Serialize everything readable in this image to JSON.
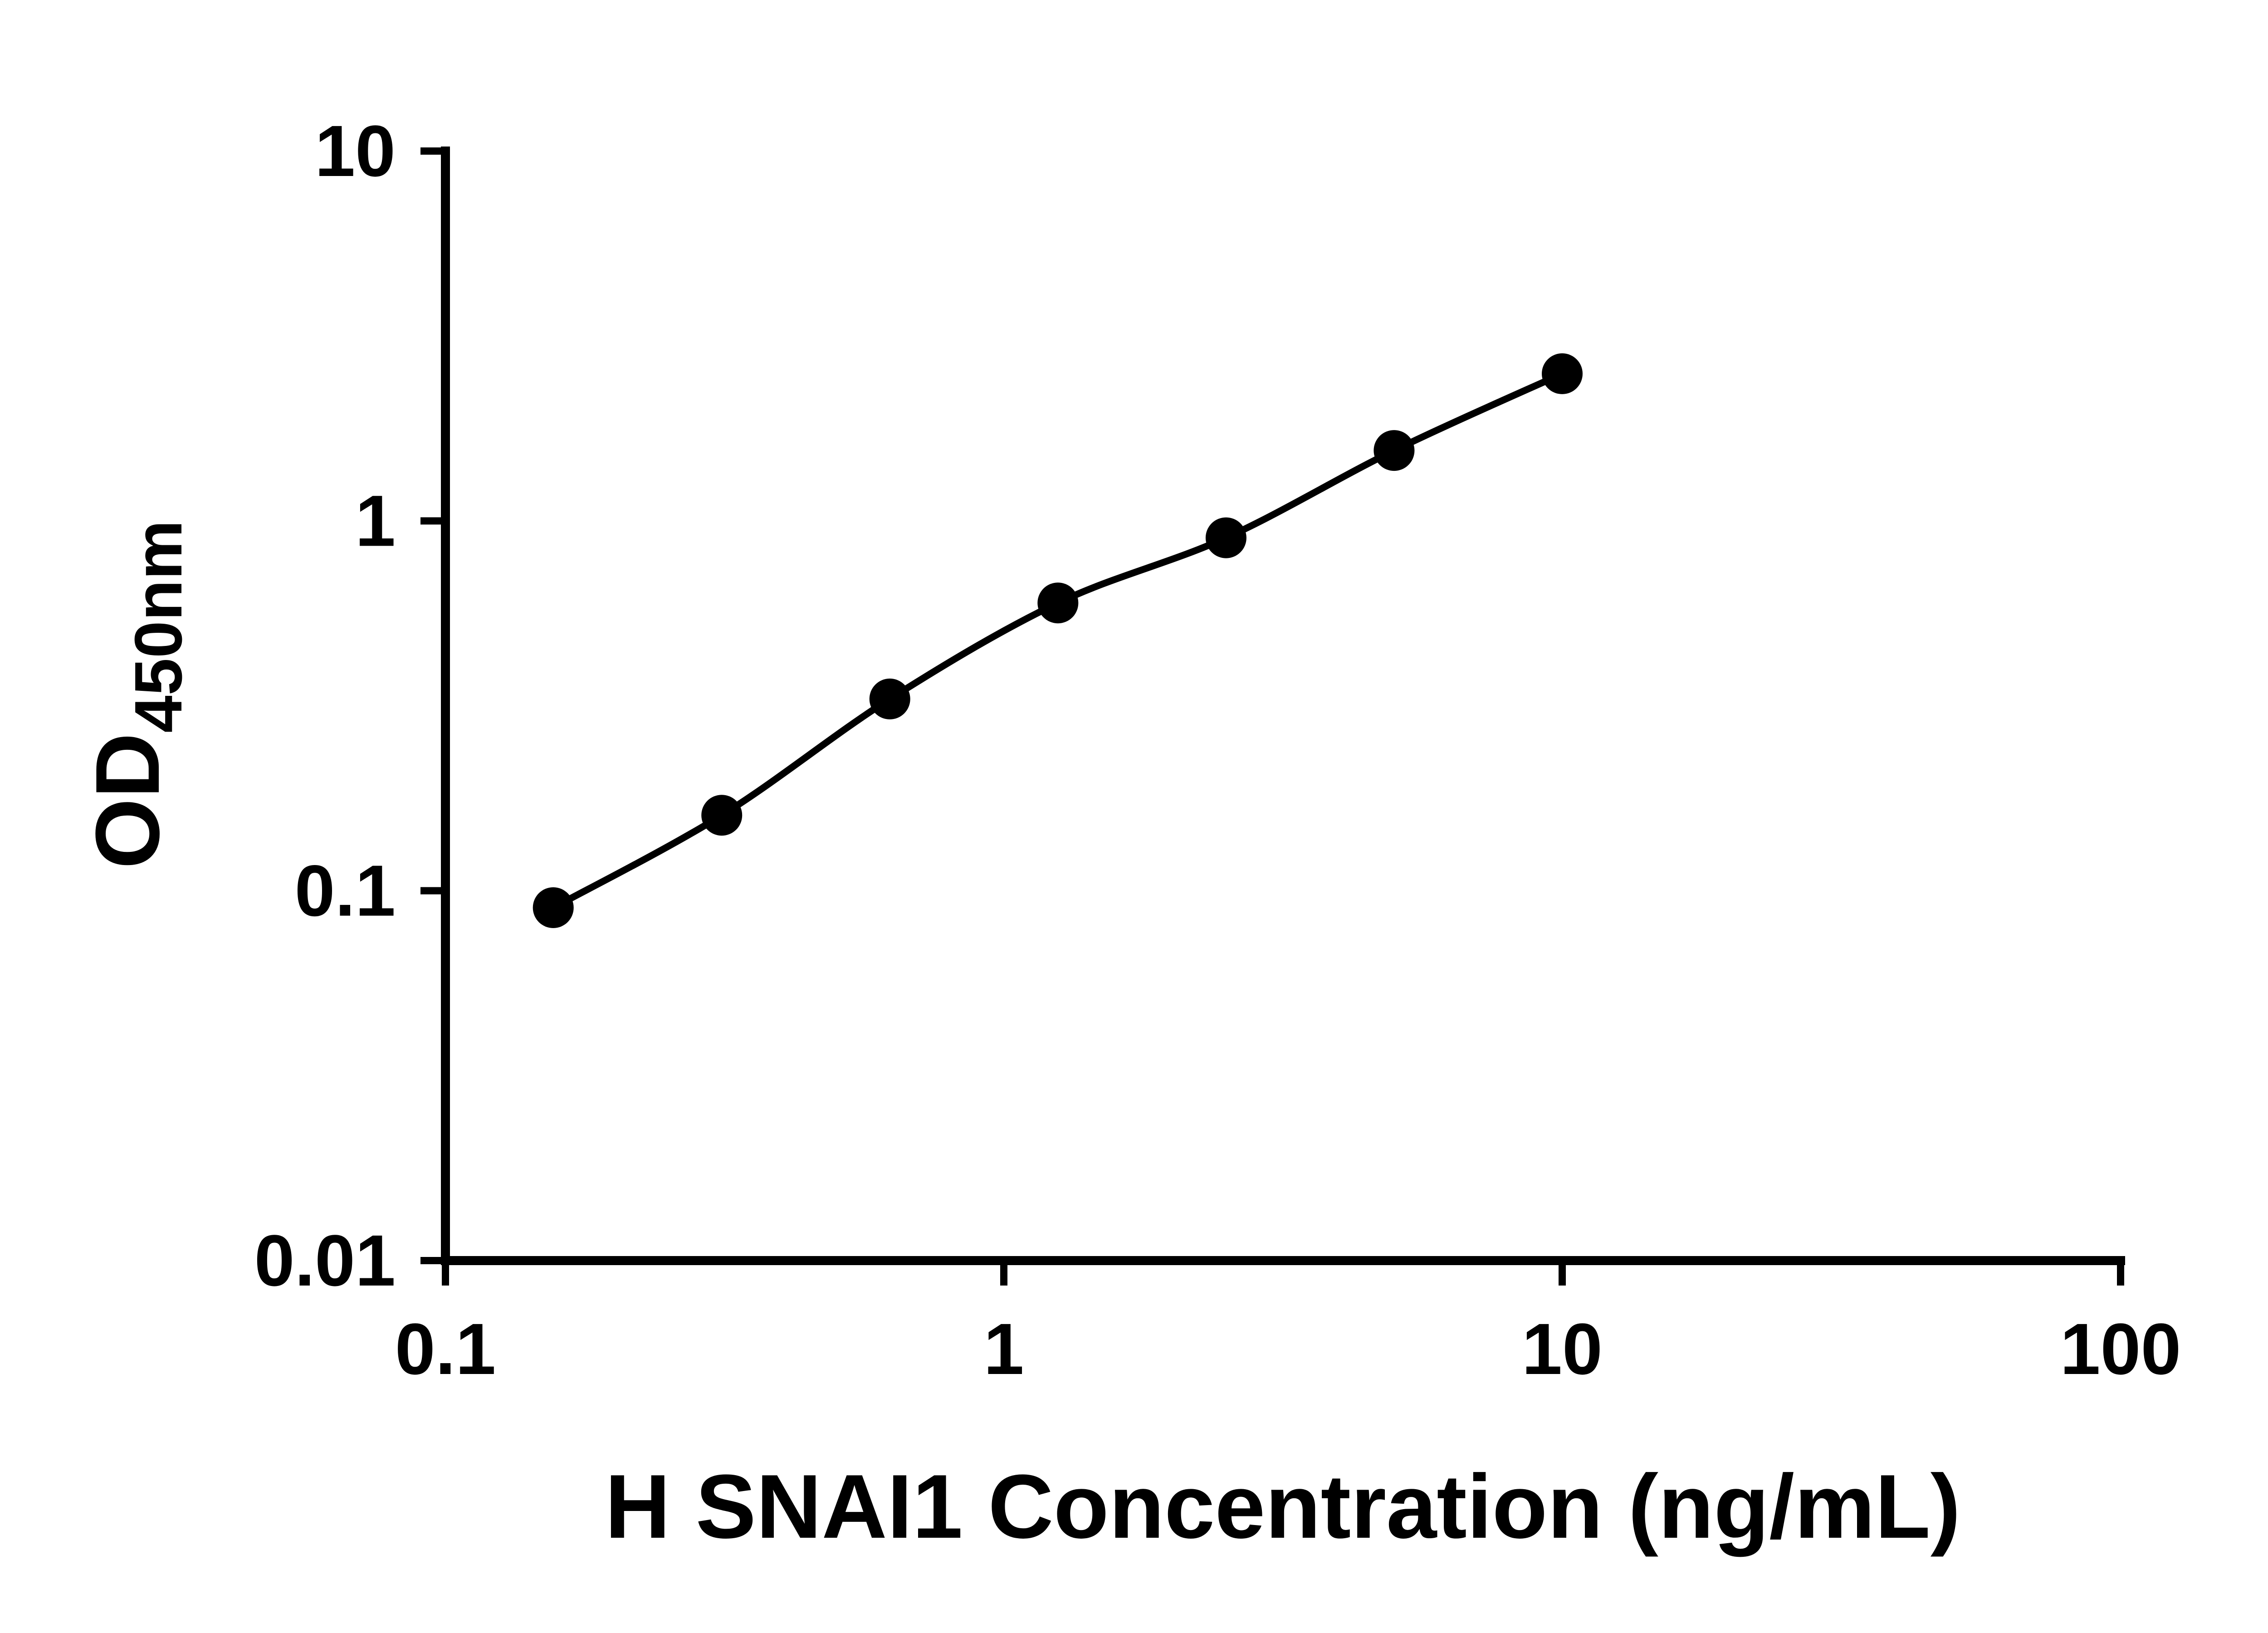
{
  "chart_data": {
    "type": "scatter",
    "title": "",
    "xlabel": "H SNAI1 Concentration (ng/mL)",
    "ylabel_main": "OD",
    "ylabel_sub": "450nm",
    "x_scale": "log",
    "y_scale": "log",
    "xlim": [
      0.1,
      100
    ],
    "ylim": [
      0.01,
      10
    ],
    "grid": false,
    "legend": "none",
    "background_color": "#ffffff",
    "line_color": "#000000",
    "marker_color": "#000000",
    "x_ticks": [
      {
        "value": 0.1,
        "label": "0.1"
      },
      {
        "value": 1,
        "label": "1"
      },
      {
        "value": 10,
        "label": "10"
      },
      {
        "value": 100,
        "label": "100"
      }
    ],
    "y_ticks": [
      {
        "value": 0.01,
        "label": "0.01"
      },
      {
        "value": 0.1,
        "label": "0.1"
      },
      {
        "value": 1,
        "label": "1"
      },
      {
        "value": 10,
        "label": "10"
      }
    ],
    "series": [
      {
        "marker": "circle",
        "trendline": true,
        "points": [
          {
            "x": 0.156,
            "y": 0.09
          },
          {
            "x": 0.3125,
            "y": 0.16
          },
          {
            "x": 0.625,
            "y": 0.33
          },
          {
            "x": 1.25,
            "y": 0.6
          },
          {
            "x": 2.5,
            "y": 0.9
          },
          {
            "x": 5,
            "y": 1.55
          },
          {
            "x": 10,
            "y": 2.5
          }
        ]
      }
    ]
  }
}
